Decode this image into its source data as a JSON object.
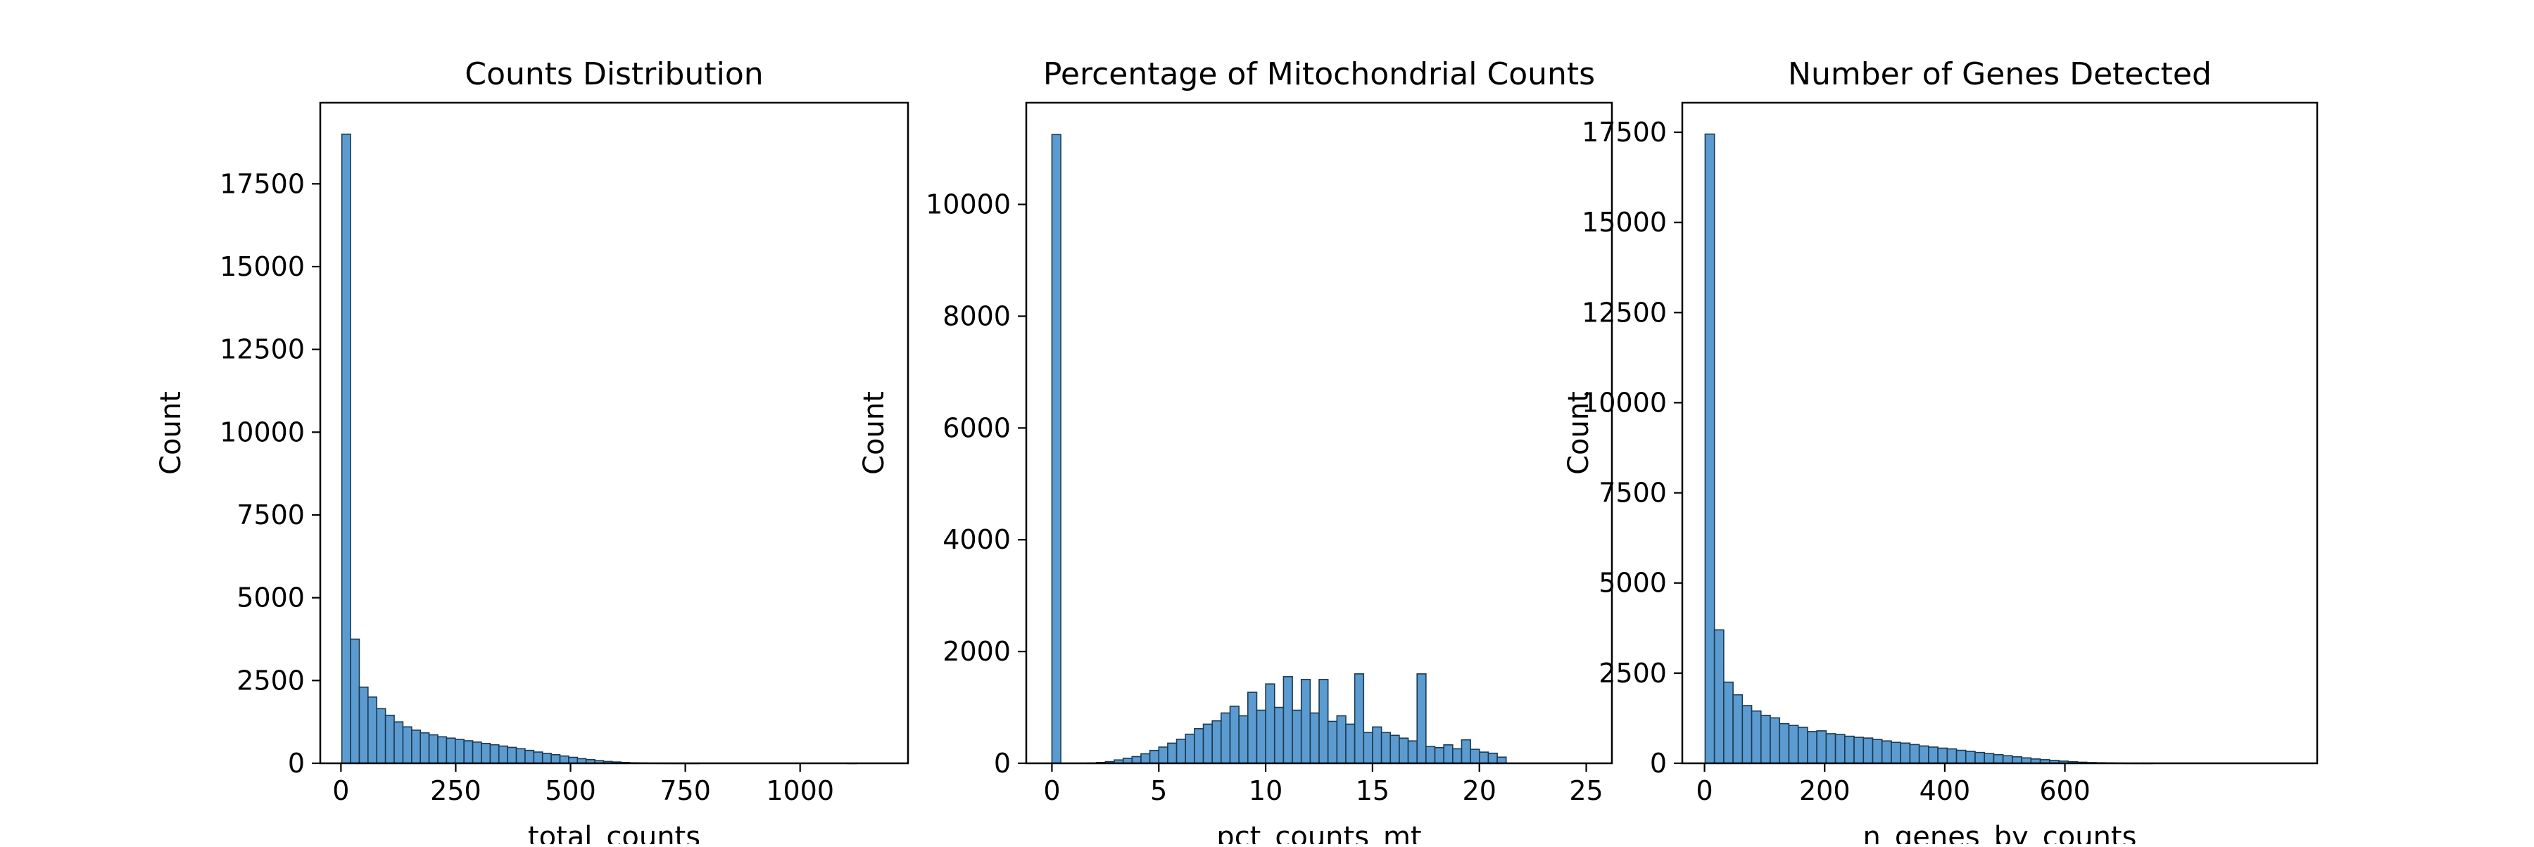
{
  "figure": {
    "suptitle": ""
  },
  "colors": {
    "bar_fill": "#5b9bd0",
    "bar_edge": "#1b3a52",
    "axis": "#000000",
    "background": "#ffffff"
  },
  "chart_data": [
    {
      "type": "bar",
      "title": "Counts Distribution",
      "xlabel": "total_counts",
      "ylabel": "Count",
      "xlim": [
        -45,
        1235
      ],
      "ylim": [
        0,
        19950
      ],
      "xticks": [
        0,
        250,
        500,
        750,
        1000
      ],
      "xtick_labels": [
        "0",
        "250",
        "500",
        "750",
        "1000"
      ],
      "yticks": [
        0,
        2500,
        5000,
        7500,
        10000,
        12500,
        15000,
        17500
      ],
      "ytick_labels": [
        "0",
        "2500",
        "5000",
        "7500",
        "10000",
        "12500",
        "15000",
        "17500"
      ],
      "grid": false,
      "bin_start": 2,
      "bin_width": 19,
      "values": [
        19000,
        3750,
        2300,
        2000,
        1650,
        1450,
        1250,
        1100,
        1000,
        920,
        860,
        800,
        760,
        720,
        680,
        640,
        600,
        560,
        520,
        480,
        440,
        390,
        340,
        300,
        260,
        220,
        180,
        140,
        110,
        80,
        55,
        40,
        25,
        15,
        10,
        6,
        4,
        3,
        2,
        1,
        1,
        0,
        0,
        0,
        0,
        0,
        0,
        0,
        0,
        0,
        0,
        0,
        0,
        0,
        0,
        0,
        0,
        0,
        1
      ]
    },
    {
      "type": "bar",
      "title": "Percentage of Mitochondrial Counts",
      "xlabel": "pct_counts_mt",
      "ylabel": "Count",
      "xlim": [
        -1.2,
        26.2
      ],
      "ylim": [
        0,
        11820
      ],
      "xticks": [
        0,
        5,
        10,
        15,
        20,
        25
      ],
      "xtick_labels": [
        "0",
        "5",
        "10",
        "15",
        "20",
        "25"
      ],
      "yticks": [
        0,
        2000,
        4000,
        6000,
        8000,
        10000
      ],
      "ytick_labels": [
        "0",
        "2000",
        "4000",
        "6000",
        "8000",
        "10000"
      ],
      "grid": false,
      "bin_start": 0,
      "bin_width": 0.4167,
      "values": [
        11250,
        0,
        0,
        0,
        5,
        15,
        30,
        60,
        90,
        120,
        170,
        230,
        290,
        360,
        430,
        520,
        620,
        700,
        760,
        900,
        1020,
        850,
        1270,
        950,
        1420,
        1000,
        1550,
        950,
        1500,
        900,
        1500,
        750,
        850,
        700,
        1600,
        550,
        650,
        550,
        500,
        450,
        400,
        1600,
        300,
        280,
        330,
        260,
        420,
        250,
        200,
        180,
        110
      ]
    },
    {
      "type": "bar",
      "title": "Number of Genes Detected",
      "xlabel": "n_genes_by_counts",
      "ylabel": "Count",
      "xlim": [
        -37,
        1020
      ],
      "ylim": [
        0,
        18320
      ],
      "xticks": [
        0,
        200,
        400,
        600
      ],
      "xtick_labels": [
        "0",
        "200",
        "400",
        "600"
      ],
      "yticks": [
        0,
        2500,
        5000,
        7500,
        10000,
        12500,
        15000,
        17500
      ],
      "ytick_labels": [
        "0",
        "2500",
        "5000",
        "7500",
        "10000",
        "12500",
        "15000",
        "17500"
      ],
      "grid": false,
      "bin_start": 1,
      "bin_width": 15.5,
      "values": [
        17450,
        3700,
        2250,
        1900,
        1600,
        1450,
        1330,
        1260,
        1100,
        1050,
        1000,
        880,
        900,
        820,
        800,
        750,
        720,
        700,
        660,
        620,
        580,
        560,
        520,
        480,
        450,
        420,
        400,
        360,
        330,
        300,
        270,
        240,
        210,
        180,
        150,
        120,
        100,
        80,
        60,
        45,
        30,
        20,
        15,
        10,
        5,
        3,
        2,
        1
      ]
    }
  ]
}
